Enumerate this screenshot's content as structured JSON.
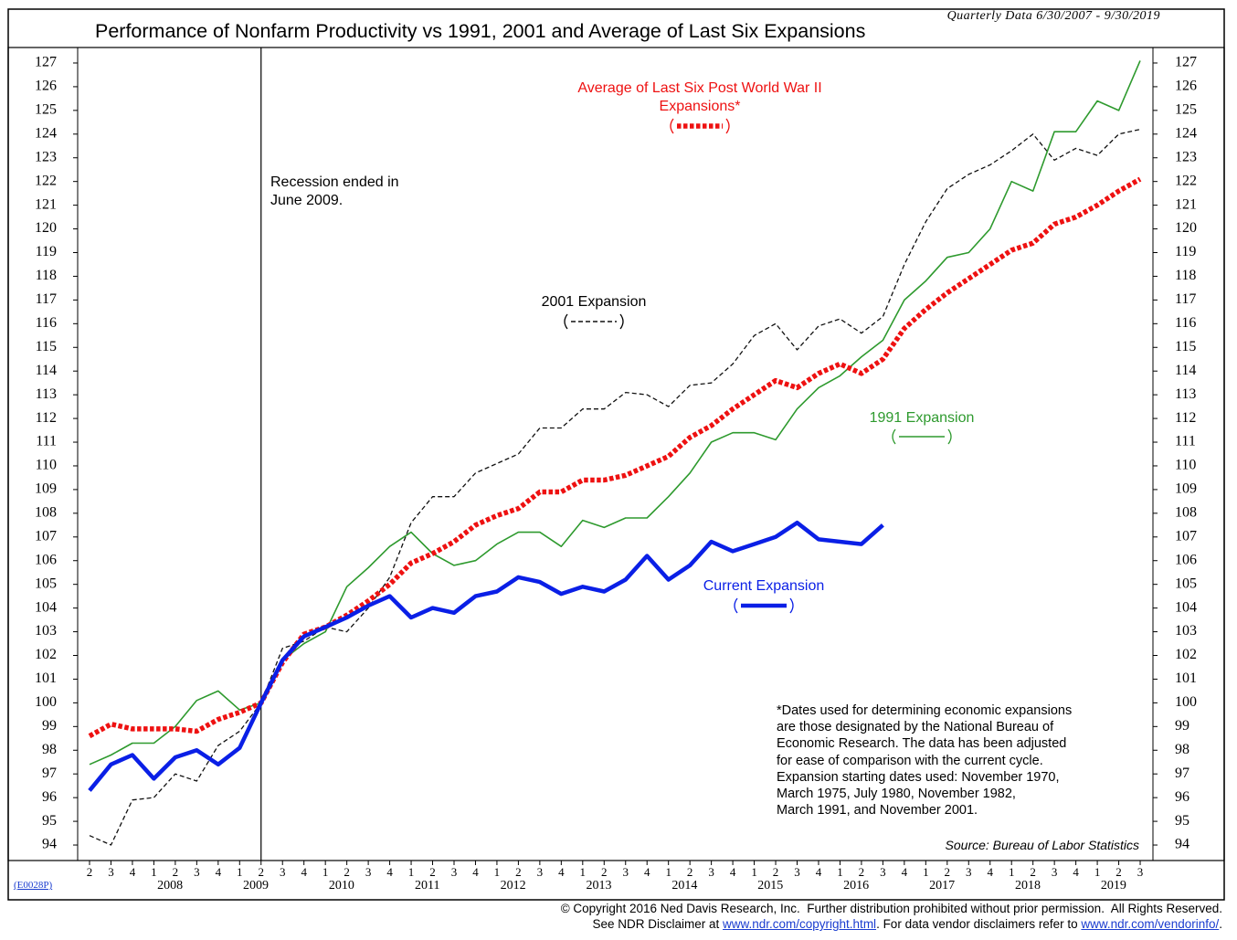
{
  "chart_data": {
    "type": "line",
    "title": "Performance of Nonfarm Productivity vs 1991, 2001 and Average of Last Six Expansions",
    "subtitle": "Quarterly Data 6/30/2007 - 9/30/2019",
    "categories": [
      "2",
      "3",
      "4",
      "1",
      "2",
      "3",
      "4",
      "1",
      "2",
      "3",
      "4",
      "1",
      "2",
      "3",
      "4",
      "1",
      "2",
      "3",
      "4",
      "1",
      "2",
      "3",
      "4",
      "1",
      "2",
      "3",
      "4",
      "1",
      "2",
      "3",
      "4",
      "1",
      "2",
      "3",
      "4",
      "1",
      "2",
      "3",
      "4",
      "1",
      "2",
      "3",
      "4",
      "1",
      "2",
      "3",
      "4",
      "1",
      "2",
      "3"
    ],
    "years": [
      "2008",
      "2009",
      "2010",
      "2011",
      "2012",
      "2013",
      "2014",
      "2015",
      "2016",
      "2017",
      "2018",
      "2019"
    ],
    "series": [
      {
        "name": "Current Expansion",
        "color": "#0a1fe6",
        "values": [
          96.3,
          97.4,
          97.8,
          96.8,
          97.7,
          98.0,
          97.4,
          98.1,
          100,
          101.8,
          102.8,
          103.2,
          103.6,
          104.1,
          104.5,
          103.6,
          104.0,
          103.8,
          104.5,
          104.7,
          105.3,
          105.1,
          104.6,
          104.9,
          104.7,
          105.2,
          106.2,
          105.2,
          105.8,
          106.8,
          106.4,
          106.7,
          107.0,
          107.6,
          106.9,
          106.8,
          106.7,
          107.5,
          null,
          null,
          null,
          null,
          null,
          null,
          null,
          null,
          null,
          null,
          null,
          null
        ]
      },
      {
        "name": "1991 Expansion",
        "color": "#2e9a2e",
        "values": [
          97.4,
          97.8,
          98.3,
          98.3,
          99.0,
          100.1,
          100.5,
          99.7,
          100,
          101.8,
          102.5,
          103.0,
          104.9,
          105.7,
          106.6,
          107.2,
          106.3,
          105.8,
          106.0,
          106.7,
          107.2,
          107.2,
          106.6,
          107.7,
          107.4,
          107.8,
          107.8,
          108.7,
          109.7,
          111.0,
          111.4,
          111.4,
          111.1,
          112.4,
          113.3,
          113.8,
          114.6,
          115.3,
          117.0,
          117.8,
          118.8,
          119.0,
          120.0,
          122.0,
          121.6,
          124.1,
          124.1,
          125.4,
          125.0,
          127.1
        ]
      },
      {
        "name": "2001 Expansion",
        "color": "#111111",
        "values": [
          94.4,
          94.0,
          95.9,
          96.0,
          97.0,
          96.7,
          98.2,
          98.8,
          100,
          102.3,
          102.6,
          103.2,
          103.0,
          104.0,
          105.3,
          107.6,
          108.7,
          108.7,
          109.7,
          110.1,
          110.5,
          111.6,
          111.6,
          112.4,
          112.4,
          113.1,
          113.0,
          112.5,
          113.4,
          113.5,
          114.3,
          115.5,
          116.0,
          114.9,
          115.9,
          116.2,
          115.6,
          116.3,
          118.5,
          120.3,
          121.7,
          122.3,
          122.7,
          123.3,
          124.0,
          122.9,
          123.4,
          123.1,
          124.0,
          124.2
        ]
      },
      {
        "name": "Average of Last Six Post World War II Expansions*",
        "color": "#ee1111",
        "values": [
          98.6,
          99.1,
          98.9,
          98.9,
          98.9,
          98.8,
          99.3,
          99.6,
          100,
          101.7,
          102.9,
          103.2,
          103.7,
          104.3,
          105.0,
          105.9,
          106.3,
          106.8,
          107.5,
          107.9,
          108.2,
          108.9,
          108.9,
          109.4,
          109.4,
          109.6,
          110.0,
          110.4,
          111.2,
          111.7,
          112.4,
          113.0,
          113.6,
          113.3,
          113.9,
          114.3,
          113.9,
          114.5,
          115.8,
          116.6,
          117.3,
          117.9,
          118.5,
          119.1,
          119.4,
          120.2,
          120.5,
          121.0,
          121.6,
          122.1
        ]
      }
    ],
    "ylim": [
      93.5,
      127.5
    ],
    "yticks": [
      94,
      95,
      96,
      97,
      98,
      99,
      100,
      101,
      102,
      103,
      104,
      105,
      106,
      107,
      108,
      109,
      110,
      111,
      112,
      113,
      114,
      115,
      116,
      117,
      118,
      119,
      120,
      121,
      122,
      123,
      124,
      125,
      126,
      127
    ],
    "annotation": "Recession ended in June 2009.",
    "notes": [
      "*Dates  used for determining economic expansions",
      "are those designated by the National Bureau of",
      "Economic Research.  The data has been adjusted",
      "for ease of comparison with the current cycle.",
      "Expansion starting dates used: November 1970,",
      "March 1975, July 1980, November 1982,",
      "March 1991, and November 2001."
    ],
    "source": "Source: Bureau of Labor Statistics",
    "code": "(E0028P)",
    "copyright": "© Copyright 2016 Ned Davis Research, Inc.  Further distribution prohibited without prior permission.  All Rights Reserved.",
    "disclaimer": [
      "See NDR Disclaimer at ",
      "www.ndr.com/copyright.html",
      ". For data vendor disclaimers refer to ",
      "www.ndr.com/vendorinfo/",
      "."
    ]
  }
}
